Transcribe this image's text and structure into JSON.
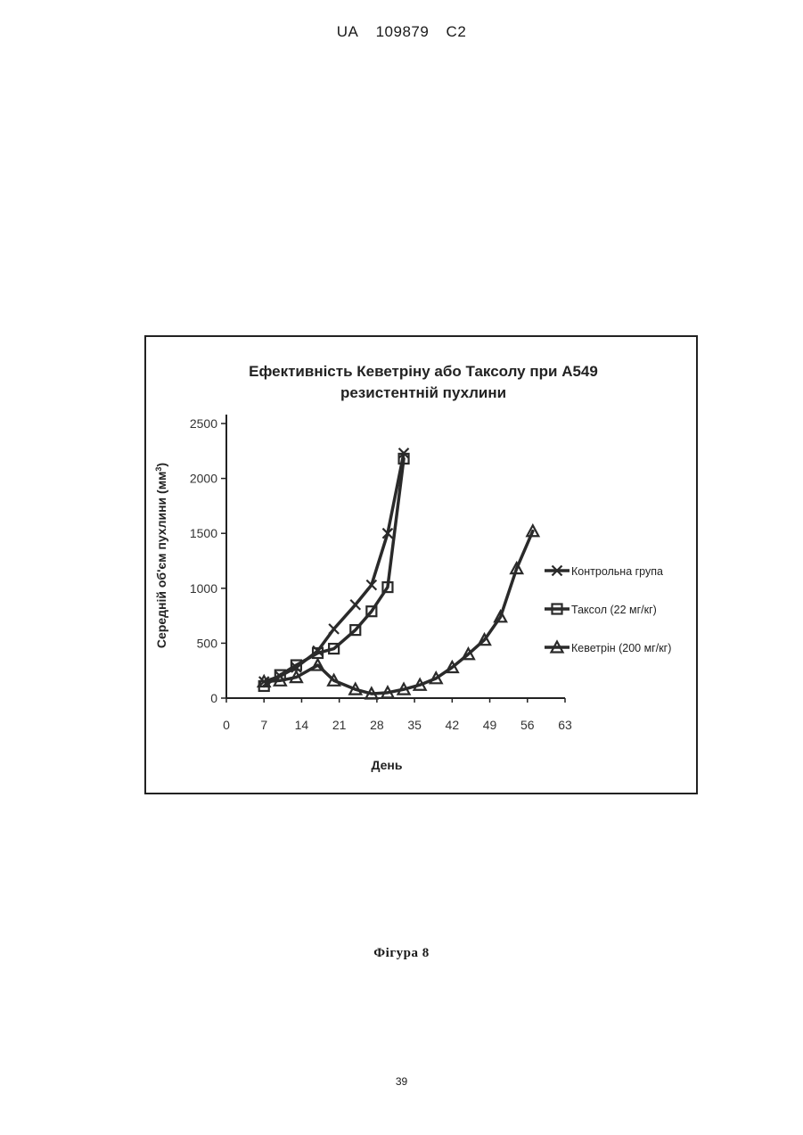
{
  "header": {
    "country": "UA",
    "number": "109879",
    "kind": "C2"
  },
  "chart_data": {
    "type": "line",
    "title": [
      "Ефективність Кеветріну або Таксолу при А549",
      "резистентній пухлини"
    ],
    "xlabel": "День",
    "ylabel": "Середній об'єм пухлини (мм",
    "ylabel_sup": "3",
    "ylabel_tail": ")",
    "xlim": [
      0,
      63
    ],
    "ylim": [
      0,
      2500
    ],
    "xticks": [
      "0",
      "7",
      "14",
      "21",
      "28",
      "35",
      "42",
      "49",
      "56",
      "63"
    ],
    "yticks": [
      "0",
      "500",
      "1000",
      "1500",
      "2000",
      "2500"
    ],
    "grid": false,
    "legend_position": "right",
    "series": [
      {
        "name": "Контрольна група",
        "marker": "x",
        "x": [
          7,
          10,
          13,
          17,
          20,
          24,
          27,
          30,
          33
        ],
        "y": [
          150,
          200,
          280,
          430,
          630,
          850,
          1030,
          1500,
          2230
        ]
      },
      {
        "name": "Таксол (22 мг/кг)",
        "marker": "square",
        "x": [
          7,
          10,
          13,
          17,
          20,
          24,
          27,
          30,
          33
        ],
        "y": [
          110,
          210,
          300,
          410,
          450,
          620,
          790,
          1010,
          2180
        ]
      },
      {
        "name": "Кеветрін (200 мг/кг)",
        "marker": "triangle",
        "x": [
          7,
          10,
          13,
          17,
          20,
          24,
          27,
          30,
          33,
          36,
          39,
          42,
          45,
          48,
          51,
          54,
          57
        ],
        "y": [
          150,
          160,
          190,
          300,
          160,
          80,
          40,
          50,
          80,
          120,
          180,
          280,
          400,
          530,
          740,
          1180,
          1520
        ]
      }
    ]
  },
  "figure_caption": "Фігура 8",
  "page_number": "39"
}
